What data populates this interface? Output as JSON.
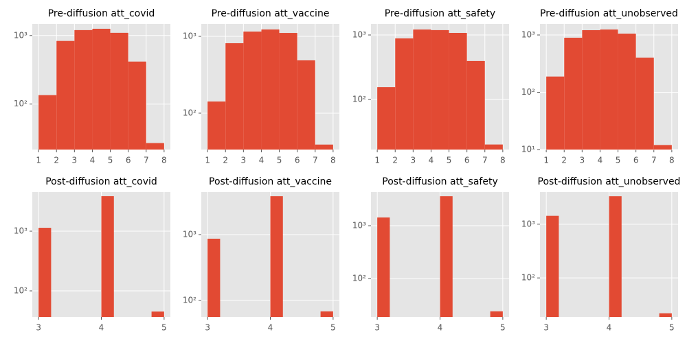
{
  "chart_data": [
    {
      "type": "histogram",
      "title": "Pre-diffusion att_covid",
      "bins": [
        1,
        2,
        3,
        4,
        5,
        6,
        7,
        8
      ],
      "values": [
        135,
        834,
        1200,
        1255,
        1095,
        417,
        27
      ],
      "color": "#E24A33",
      "xlim": [
        0.65,
        8.35
      ],
      "ylim": [
        21.7,
        1473
      ],
      "xticks": [
        1,
        2,
        3,
        4,
        5,
        6,
        7,
        8
      ],
      "yticks": [
        {
          "value": 100,
          "label": "10²"
        },
        {
          "value": 1000,
          "label": "10³"
        }
      ],
      "log_y": true,
      "grid": true
    },
    {
      "type": "histogram",
      "title": "Pre-diffusion att_vaccine",
      "bins": [
        1,
        2,
        3,
        4,
        5,
        6,
        7,
        8
      ],
      "values": [
        142,
        814,
        1155,
        1230,
        1107,
        487,
        39
      ],
      "color": "#E24A33",
      "xlim": [
        0.65,
        8.35
      ],
      "ylim": [
        33.6,
        1448
      ],
      "xticks": [
        1,
        2,
        3,
        4,
        5,
        6,
        7,
        8
      ],
      "yticks": [
        {
          "value": 100,
          "label": "10²"
        },
        {
          "value": 1000,
          "label": "10³"
        }
      ],
      "log_y": true,
      "grid": true
    },
    {
      "type": "histogram",
      "title": "Pre-diffusion att_safety",
      "bins": [
        1,
        2,
        3,
        4,
        5,
        6,
        7,
        8
      ],
      "values": [
        155,
        885,
        1216,
        1190,
        1076,
        395,
        20
      ],
      "color": "#E24A33",
      "xlim": [
        0.65,
        8.35
      ],
      "ylim": [
        16.7,
        1480
      ],
      "xticks": [
        1,
        2,
        3,
        4,
        5,
        6,
        7,
        8
      ],
      "yticks": [
        {
          "value": 100,
          "label": "10²"
        },
        {
          "value": 1000,
          "label": "10³"
        }
      ],
      "log_y": true,
      "grid": true
    },
    {
      "type": "histogram",
      "title": "Pre-diffusion att_unobserved",
      "bins": [
        1,
        2,
        3,
        4,
        5,
        6,
        7,
        8
      ],
      "values": [
        188,
        896,
        1213,
        1247,
        1057,
        403,
        12
      ],
      "color": "#E24A33",
      "xlim": [
        0.65,
        8.35
      ],
      "ylim": [
        10,
        1555
      ],
      "xticks": [
        1,
        2,
        3,
        4,
        5,
        6,
        7,
        8
      ],
      "yticks": [
        {
          "value": 10,
          "label": "10¹"
        },
        {
          "value": 100,
          "label": "10²"
        },
        {
          "value": 1000,
          "label": "10³"
        }
      ],
      "log_y": true,
      "grid": true
    },
    {
      "type": "histogram",
      "title": "Post-diffusion att_covid",
      "bins": [
        3,
        3.2,
        3.4,
        3.6,
        3.8,
        4,
        4.2,
        4.4,
        4.6,
        4.8,
        5
      ],
      "values": [
        1140,
        0,
        0,
        0,
        0,
        3855,
        0,
        0,
        0,
        45
      ],
      "color": "#E24A33",
      "xlim": [
        2.9,
        5.1
      ],
      "ylim": [
        36.6,
        4520
      ],
      "xticks": [
        3,
        4,
        5
      ],
      "yticks": [
        {
          "value": 100,
          "label": "10²"
        },
        {
          "value": 1000,
          "label": "10³"
        }
      ],
      "log_y": true,
      "grid": true
    },
    {
      "type": "histogram",
      "title": "Post-diffusion att_vaccine",
      "bins": [
        3,
        3.2,
        3.4,
        3.6,
        3.8,
        4,
        4.2,
        4.4,
        4.6,
        4.8,
        5
      ],
      "values": [
        866,
        0,
        0,
        0,
        0,
        3830,
        0,
        0,
        0,
        68
      ],
      "color": "#E24A33",
      "xlim": [
        2.9,
        5.1
      ],
      "ylim": [
        56,
        4430
      ],
      "xticks": [
        3,
        4,
        5
      ],
      "yticks": [
        {
          "value": 100,
          "label": "10²"
        },
        {
          "value": 1000,
          "label": "10³"
        }
      ],
      "log_y": true,
      "grid": true
    },
    {
      "type": "histogram",
      "title": "Post-diffusion att_safety",
      "bins": [
        3,
        3.2,
        3.4,
        3.6,
        3.8,
        4,
        4.2,
        4.4,
        4.6,
        4.8,
        5
      ],
      "values": [
        1432,
        0,
        0,
        0,
        0,
        3610,
        0,
        0,
        0,
        24
      ],
      "color": "#E24A33",
      "xlim": [
        2.9,
        5.1
      ],
      "ylim": [
        18.8,
        4330
      ],
      "xticks": [
        3,
        4,
        5
      ],
      "yticks": [
        {
          "value": 100,
          "label": "10²"
        },
        {
          "value": 1000,
          "label": "10³"
        }
      ],
      "log_y": true,
      "grid": true
    },
    {
      "type": "histogram",
      "title": "Post-diffusion att_unobserved",
      "bins": [
        3,
        3.2,
        3.4,
        3.6,
        3.8,
        4,
        4.2,
        4.4,
        4.6,
        4.8,
        5
      ],
      "values": [
        1430,
        0,
        0,
        0,
        0,
        3310,
        0,
        0,
        0,
        22
      ],
      "color": "#E24A33",
      "xlim": [
        2.9,
        5.1
      ],
      "ylim": [
        18.8,
        3960
      ],
      "xticks": [
        3,
        4,
        5
      ],
      "yticks": [
        {
          "value": 100,
          "label": "10²"
        },
        {
          "value": 1000,
          "label": "10³"
        }
      ],
      "log_y": true,
      "grid": true
    }
  ]
}
